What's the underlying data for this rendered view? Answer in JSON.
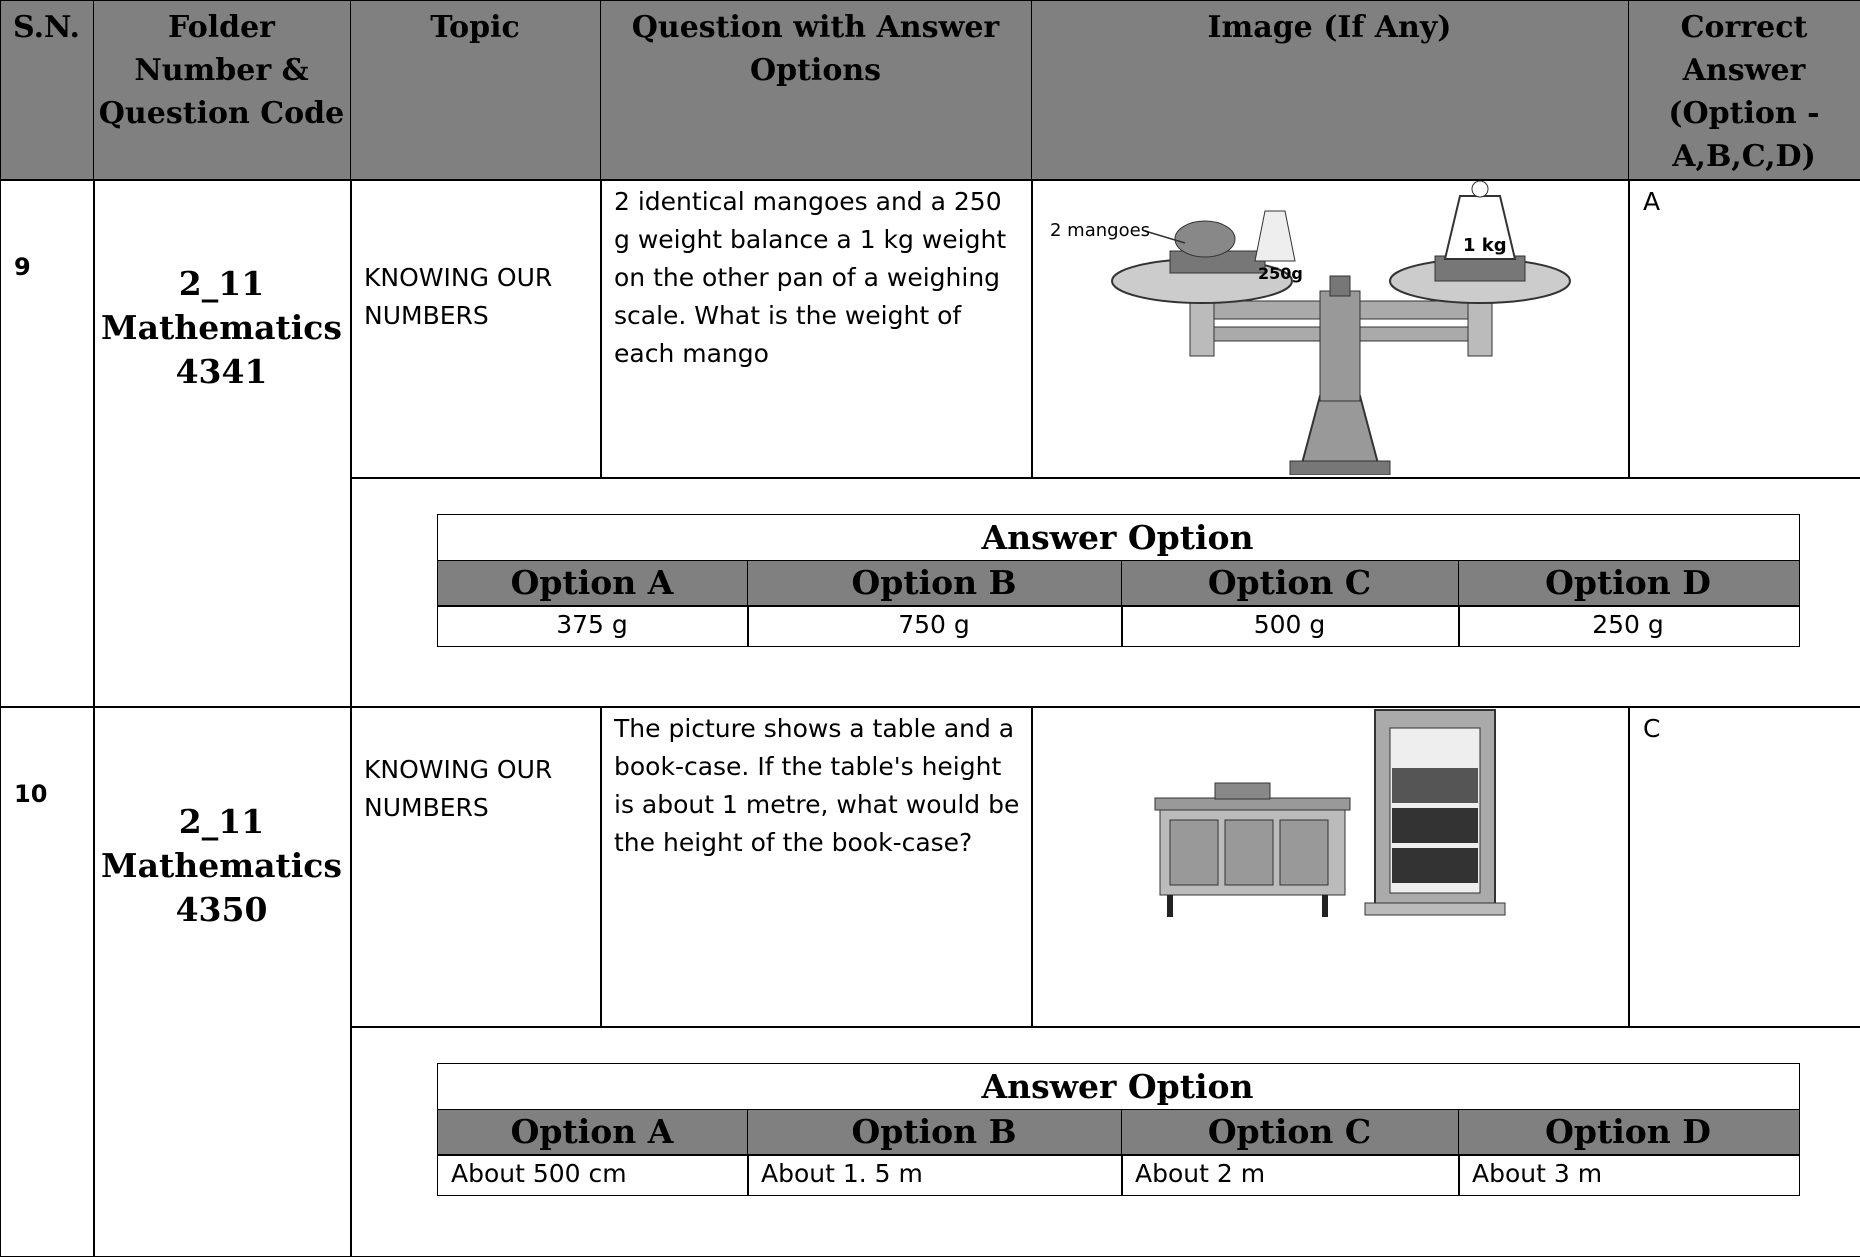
{
  "header": {
    "columns": [
      "S.N.",
      "Folder Number & Question Code",
      "Topic",
      "Question with Answer Options",
      "Image (If Any)",
      "Correct Answer (Option - A,B,C,D)"
    ]
  },
  "rows": [
    {
      "sn": "9",
      "folder": [
        "2_11",
        "Mathematics",
        "4341"
      ],
      "topic": "KNOWING OUR NUMBERS",
      "question": "2 identical mangoes and a 250 g weight balance a 1 kg weight on the other pan of a weighing scale. What is the weight of each mango",
      "image_labels": [
        "2 mangoes",
        "250g",
        "1 kg"
      ],
      "answer": "A",
      "answer_option": {
        "title": "Answer Option",
        "headers": [
          "Option A",
          "Option B",
          "Option C",
          "Option D"
        ],
        "values": [
          "375 g",
          "750 g",
          "500 g",
          "250 g"
        ]
      }
    },
    {
      "sn": "10",
      "folder": [
        "2_11",
        "Mathematics",
        "4350"
      ],
      "topic": "KNOWING OUR NUMBERS",
      "question": "The picture shows a table and a book-case. If the table's height is about 1 metre, what would be the height of the book-case?",
      "image_labels": [],
      "answer": "C",
      "answer_option": {
        "title": "Answer Option",
        "headers": [
          "Option A",
          "Option B",
          "Option C",
          "Option D"
        ],
        "values": [
          "About 500 cm",
          "About 1. 5 m",
          "About 2 m",
          "About 3 m"
        ]
      }
    }
  ]
}
